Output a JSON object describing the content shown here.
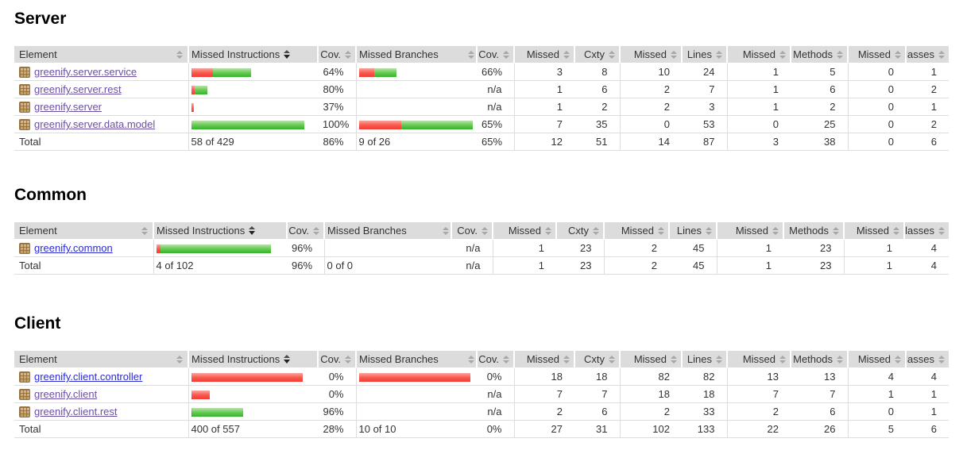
{
  "report": {
    "columns": [
      "Element",
      "Missed Instructions",
      "Cov.",
      "Missed Branches",
      "Cov.",
      "Missed",
      "Cxty",
      "Missed",
      "Lines",
      "Missed",
      "Methods",
      "Missed",
      "Classes"
    ],
    "sorted_by": "Missed Instructions",
    "sort_direction": "descending",
    "colors": {
      "link": "#2b2bd5",
      "visited_link": "#6b4fa0",
      "bar_red": "#f23d33",
      "bar_green": "#35b42c",
      "header_bg": "#dcdcdc"
    },
    "sections": [
      {
        "title": "Server",
        "rows": [
          {
            "label": "greenify.server.service",
            "mi_bar": {
              "red": 27,
              "green": 48
            },
            "mi_cov": "64%",
            "mb_bar": {
              "red": 19,
              "green": 28
            },
            "mb_cov": "66%",
            "missed_cxty": "3",
            "cxty": "8",
            "missed_lines": "10",
            "lines": "24",
            "missed_methods": "1",
            "methods": "5",
            "missed_classes": "0",
            "classes": "1"
          },
          {
            "label": "greenify.server.rest",
            "mi_bar": {
              "red": 4,
              "green": 16
            },
            "mi_cov": "80%",
            "mb_bar": null,
            "mb_cov": "n/a",
            "missed_cxty": "1",
            "cxty": "6",
            "missed_lines": "2",
            "lines": "7",
            "missed_methods": "1",
            "methods": "6",
            "missed_classes": "0",
            "classes": "2"
          },
          {
            "label": "greenify.server",
            "mi_bar": {
              "red": 2,
              "green": 1
            },
            "mi_cov": "37%",
            "mb_bar": null,
            "mb_cov": "n/a",
            "missed_cxty": "1",
            "cxty": "2",
            "missed_lines": "2",
            "lines": "3",
            "missed_methods": "1",
            "methods": "2",
            "missed_classes": "0",
            "classes": "1"
          },
          {
            "label": "greenify.server.data.model",
            "mi_bar": {
              "red": 0,
              "green": 142
            },
            "mi_cov": "100%",
            "mb_bar": {
              "red": 53,
              "green": 90
            },
            "mb_cov": "65%",
            "missed_cxty": "7",
            "cxty": "35",
            "missed_lines": "0",
            "lines": "53",
            "missed_methods": "0",
            "methods": "25",
            "missed_classes": "0",
            "classes": "2"
          }
        ],
        "total": {
          "label": "Total",
          "missed_instructions": "58 of 429",
          "mi_cov": "86%",
          "missed_branches": "9 of 26",
          "mb_cov": "65%",
          "missed_cxty": "12",
          "cxty": "51",
          "missed_lines": "14",
          "lines": "87",
          "missed_methods": "3",
          "methods": "38",
          "missed_classes": "0",
          "classes": "6"
        }
      },
      {
        "title": "Common",
        "rows": [
          {
            "label": "greenify.common",
            "mi_bar": {
              "red": 5,
              "green": 139
            },
            "mi_cov": "96%",
            "mb_bar": null,
            "mb_cov": "n/a",
            "missed_cxty": "1",
            "cxty": "23",
            "missed_lines": "2",
            "lines": "45",
            "missed_methods": "1",
            "methods": "23",
            "missed_classes": "1",
            "classes": "4"
          }
        ],
        "total": {
          "label": "Total",
          "missed_instructions": "4 of 102",
          "mi_cov": "96%",
          "missed_branches": "0 of 0",
          "mb_cov": "n/a",
          "missed_cxty": "1",
          "cxty": "23",
          "missed_lines": "2",
          "lines": "45",
          "missed_methods": "1",
          "methods": "23",
          "missed_classes": "1",
          "classes": "4"
        }
      },
      {
        "title": "Client",
        "rows": [
          {
            "label": "greenify.client.controller",
            "mi_bar": {
              "red": 140,
              "green": 0
            },
            "mi_cov": "0%",
            "mb_bar": {
              "red": 140,
              "green": 0
            },
            "mb_cov": "0%",
            "missed_cxty": "18",
            "cxty": "18",
            "missed_lines": "82",
            "lines": "82",
            "missed_methods": "13",
            "methods": "13",
            "missed_classes": "4",
            "classes": "4"
          },
          {
            "label": "greenify.client",
            "mi_bar": {
              "red": 23,
              "green": 0
            },
            "mi_cov": "0%",
            "mb_bar": null,
            "mb_cov": "n/a",
            "missed_cxty": "7",
            "cxty": "7",
            "missed_lines": "18",
            "lines": "18",
            "missed_methods": "7",
            "methods": "7",
            "missed_classes": "1",
            "classes": "1"
          },
          {
            "label": "greenify.client.rest",
            "mi_bar": {
              "red": 1,
              "green": 64
            },
            "mi_cov": "96%",
            "mb_bar": null,
            "mb_cov": "n/a",
            "missed_cxty": "2",
            "cxty": "6",
            "missed_lines": "2",
            "lines": "33",
            "missed_methods": "2",
            "methods": "6",
            "missed_classes": "0",
            "classes": "1"
          }
        ],
        "total": {
          "label": "Total",
          "missed_instructions": "400 of 557",
          "mi_cov": "28%",
          "missed_branches": "10 of 10",
          "mb_cov": "0%",
          "missed_cxty": "27",
          "cxty": "31",
          "missed_lines": "102",
          "lines": "133",
          "missed_methods": "22",
          "methods": "26",
          "missed_classes": "5",
          "classes": "6"
        }
      }
    ]
  }
}
